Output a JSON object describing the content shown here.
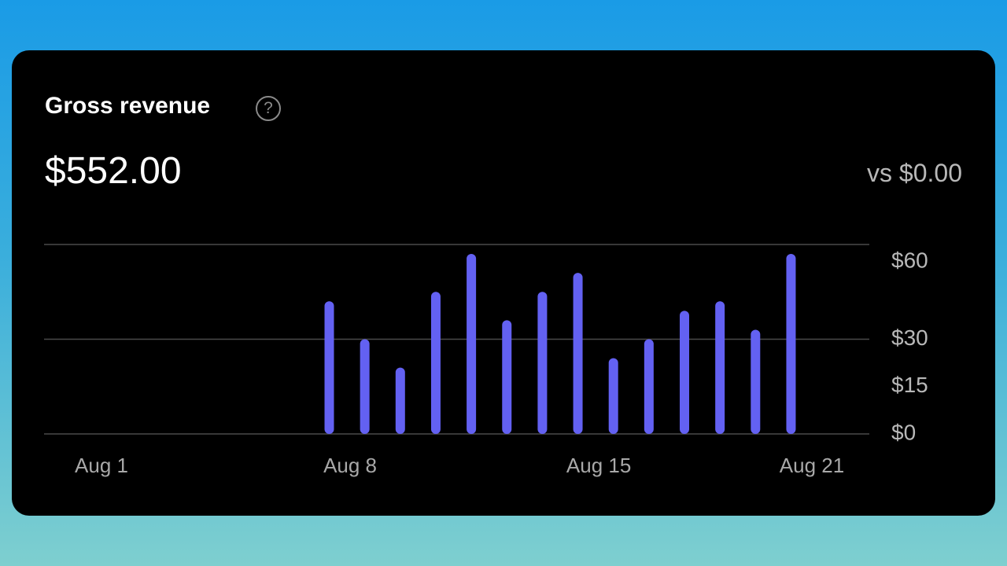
{
  "card": {
    "title": "Gross revenue",
    "help": "?",
    "value": "$552.00",
    "comparison": "vs $0.00"
  },
  "chart_data": {
    "type": "bar",
    "categories": [
      "Aug 1",
      null,
      null,
      null,
      null,
      null,
      null,
      "Aug 8",
      null,
      null,
      null,
      null,
      null,
      null,
      "Aug 15",
      null,
      null,
      null,
      null,
      null,
      "Aug 21"
    ],
    "values": [
      0,
      0,
      0,
      0,
      0,
      0,
      42,
      30,
      21,
      45,
      57,
      36,
      45,
      51,
      24,
      30,
      39,
      42,
      33,
      57,
      0
    ],
    "color": "#6361f2",
    "ylim": [
      0,
      60
    ],
    "yticks": [
      {
        "value": 0,
        "label": "$0"
      },
      {
        "value": 15,
        "label": "$15"
      },
      {
        "value": 30,
        "label": "$30"
      },
      {
        "value": 60,
        "label": "$60"
      }
    ],
    "grid": true
  }
}
